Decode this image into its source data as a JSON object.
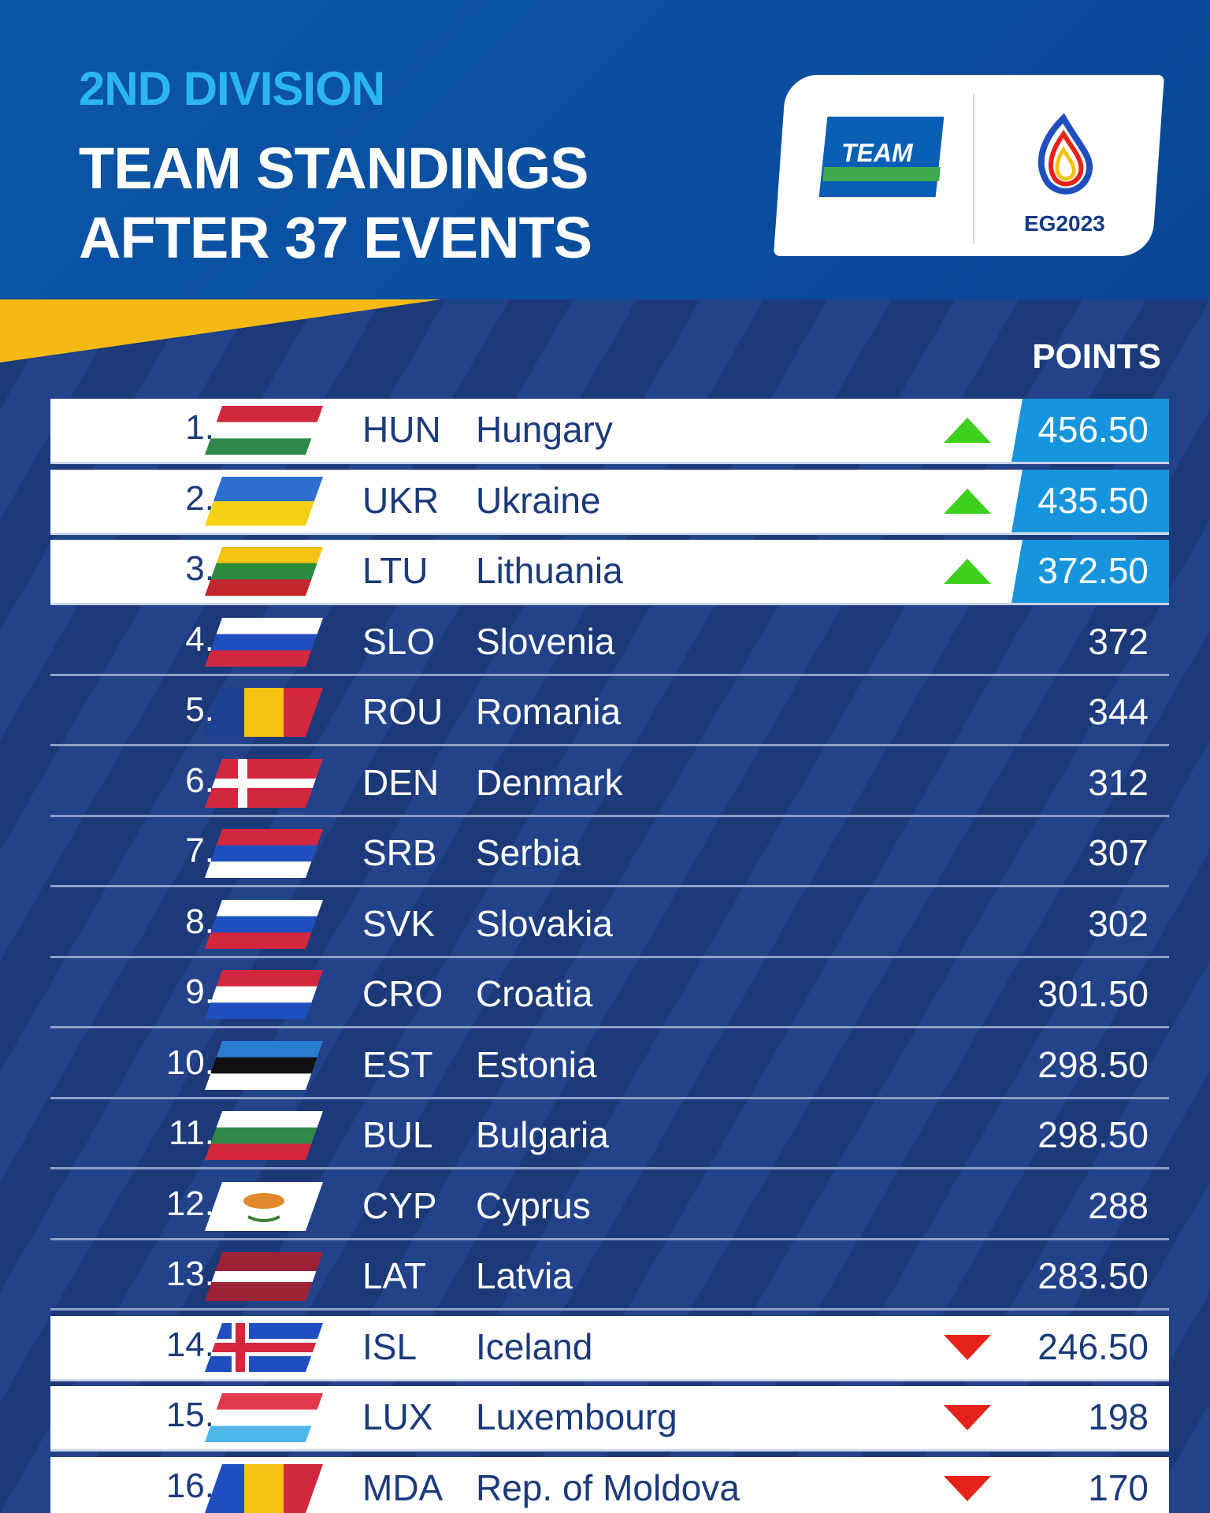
{
  "header": {
    "division": "2ND DIVISION",
    "title_line1": "TEAM STANDINGS",
    "title_line2": "AFTER 37 EVENTS",
    "logo_team_text": "TEAM",
    "logo_eg_text": "EG2023"
  },
  "table": {
    "points_header": "POINTS",
    "rows": [
      {
        "rank": "1.",
        "code": "HUN",
        "name": "Hungary",
        "points": "456.50",
        "status": "promoted",
        "flag": [
          "#d3273d",
          "#ffffff",
          "#2f8a4a"
        ]
      },
      {
        "rank": "2.",
        "code": "UKR",
        "name": "Ukraine",
        "points": "435.50",
        "status": "promoted",
        "flag": [
          "#2d6fd1",
          "#f5d017"
        ]
      },
      {
        "rank": "3.",
        "code": "LTU",
        "name": "Lithuania",
        "points": "372.50",
        "status": "promoted",
        "flag": [
          "#f5c214",
          "#2b8a3e",
          "#c4262e"
        ]
      },
      {
        "rank": "4.",
        "code": "SLO",
        "name": "Slovenia",
        "points": "372",
        "status": "",
        "flag": [
          "#ffffff",
          "#1f4fbf",
          "#d3273d"
        ]
      },
      {
        "rank": "5.",
        "code": "ROU",
        "name": "Romania",
        "points": "344",
        "status": "",
        "flag": [
          "#1c3f94",
          "#f5c214",
          "#d3273d"
        ]
      },
      {
        "rank": "6.",
        "code": "DEN",
        "name": "Denmark",
        "points": "312",
        "status": "",
        "flag": [
          "#d3273d",
          "#ffffff"
        ]
      },
      {
        "rank": "7.",
        "code": "SRB",
        "name": "Serbia",
        "points": "307",
        "status": "",
        "flag": [
          "#d3273d",
          "#1f4fbf",
          "#ffffff"
        ]
      },
      {
        "rank": "8.",
        "code": "SVK",
        "name": "Slovakia",
        "points": "302",
        "status": "",
        "flag": [
          "#ffffff",
          "#1f4fbf",
          "#d3273d"
        ]
      },
      {
        "rank": "9.",
        "code": "CRO",
        "name": "Croatia",
        "points": "301.50",
        "status": "",
        "flag": [
          "#d3273d",
          "#ffffff",
          "#1f4fbf"
        ]
      },
      {
        "rank": "10.",
        "code": "EST",
        "name": "Estonia",
        "points": "298.50",
        "status": "",
        "flag": [
          "#2a7dd1",
          "#111111",
          "#ffffff"
        ]
      },
      {
        "rank": "11.",
        "code": "BUL",
        "name": "Bulgaria",
        "points": "298.50",
        "status": "",
        "flag": [
          "#ffffff",
          "#2f8a4a",
          "#d3273d"
        ]
      },
      {
        "rank": "12.",
        "code": "CYP",
        "name": "Cyprus",
        "points": "288",
        "status": "",
        "flag": [
          "#ffffff",
          "#e08a2c",
          "#3a7d3a"
        ]
      },
      {
        "rank": "13.",
        "code": "LAT",
        "name": "Latvia",
        "points": "283.50",
        "status": "",
        "flag": [
          "#9e2235",
          "#ffffff",
          "#9e2235"
        ]
      },
      {
        "rank": "14.",
        "code": "ISL",
        "name": "Iceland",
        "points": "246.50",
        "status": "relegated",
        "flag": [
          "#1f4fbf",
          "#ffffff",
          "#d3273d"
        ]
      },
      {
        "rank": "15.",
        "code": "LUX",
        "name": "Luxembourg",
        "points": "198",
        "status": "relegated",
        "flag": [
          "#e2394b",
          "#ffffff",
          "#4fb7e8"
        ]
      },
      {
        "rank": "16.",
        "code": "MDA",
        "name": "Rep. of Moldova",
        "points": "170",
        "status": "relegated",
        "flag": [
          "#1f4fbf",
          "#f5c214",
          "#d3273d"
        ]
      }
    ]
  },
  "colors": {
    "promoted_arrow": "#3fcf1f",
    "relegated_arrow": "#e5231b",
    "points_box": "#1795dc",
    "accent": "#2cb6ef"
  }
}
